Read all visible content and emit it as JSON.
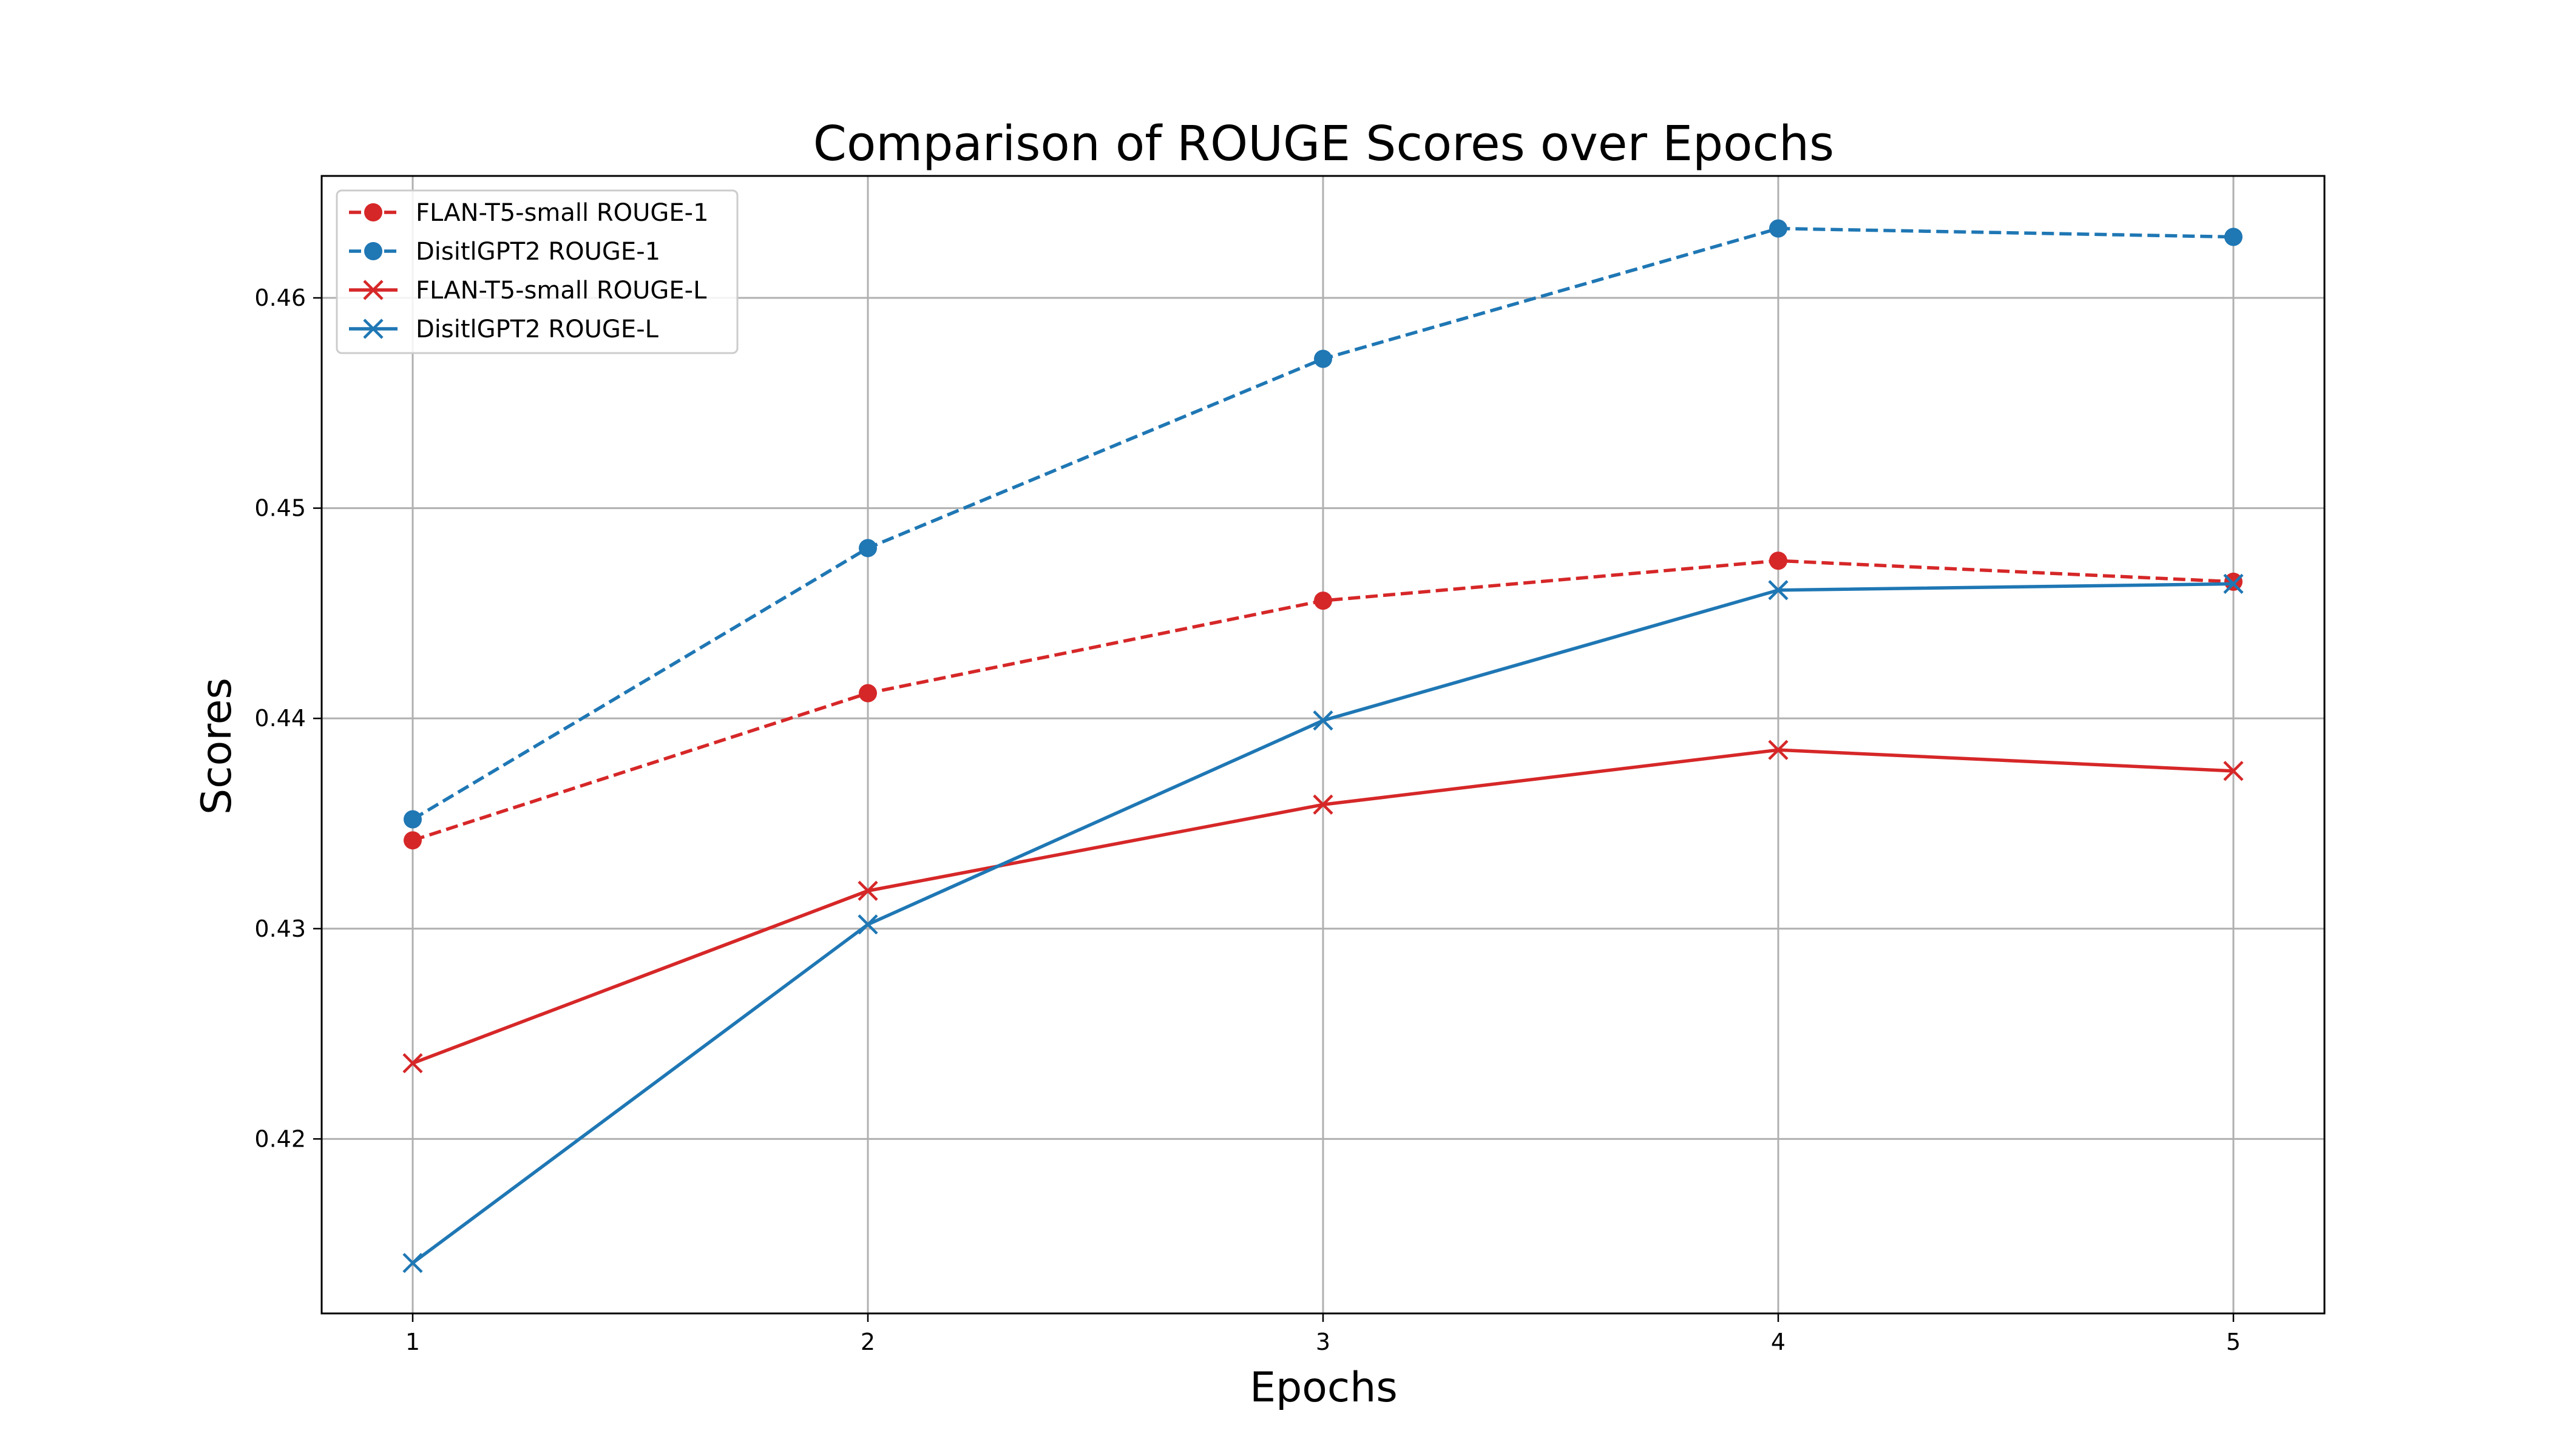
{
  "chart_data": {
    "type": "line",
    "title": "Comparison of ROUGE Scores over Epochs",
    "xlabel": "Epochs",
    "ylabel": "Scores",
    "x": [
      1,
      2,
      3,
      4,
      5
    ],
    "x_ticks": [
      "1",
      "2",
      "3",
      "4",
      "5"
    ],
    "xlim": [
      0.8,
      5.2
    ],
    "y_ticks": [
      "0.42",
      "0.43",
      "0.44",
      "0.45",
      "0.46"
    ],
    "y_tick_values": [
      0.42,
      0.43,
      0.44,
      0.45,
      0.46
    ],
    "ylim": [
      0.4117,
      0.4658
    ],
    "grid": true,
    "legend_position": "top-left",
    "series": [
      {
        "name": "FLAN-T5-small ROUGE-1",
        "values": [
          0.4342,
          0.4412,
          0.4456,
          0.4475,
          0.4465
        ],
        "color": "#d62728",
        "line_style": "dashed",
        "marker": "circle"
      },
      {
        "name": "DisitlGPT2 ROUGE-1",
        "values": [
          0.4352,
          0.4481,
          0.4571,
          0.4633,
          0.4629
        ],
        "color": "#1f77b4",
        "line_style": "dashed",
        "marker": "circle"
      },
      {
        "name": "FLAN-T5-small ROUGE-L",
        "values": [
          0.4236,
          0.4318,
          0.4359,
          0.4385,
          0.4375
        ],
        "color": "#d62728",
        "line_style": "solid",
        "marker": "x"
      },
      {
        "name": "DisitlGPT2 ROUGE-L",
        "values": [
          0.4141,
          0.4302,
          0.4399,
          0.4461,
          0.4464
        ],
        "color": "#1f77b4",
        "line_style": "solid",
        "marker": "x"
      }
    ]
  }
}
